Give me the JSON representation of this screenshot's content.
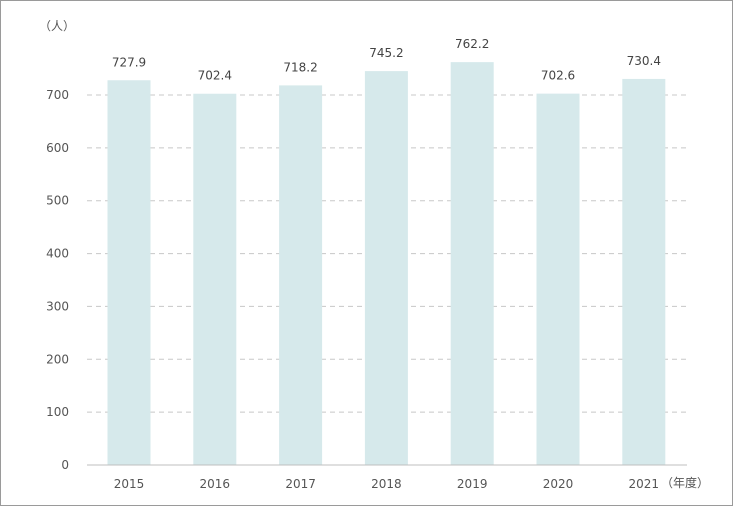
{
  "chart_data": {
    "type": "bar",
    "categories": [
      "2015",
      "2016",
      "2017",
      "2018",
      "2019",
      "2020",
      "2021"
    ],
    "values": [
      727.9,
      702.4,
      718.2,
      745.2,
      762.2,
      702.6,
      730.4
    ],
    "value_labels": [
      "727.9",
      "702.4",
      "718.2",
      "745.2",
      "762.2",
      "702.6",
      "730.4"
    ],
    "y_ticks": [
      0,
      100,
      200,
      300,
      400,
      500,
      600,
      700
    ],
    "ylim": [
      0,
      800
    ],
    "ylabel": "（人）",
    "xlabel": "（年度）",
    "grid": true,
    "colors": {
      "bar": "#d6e9eb",
      "grid": "#c8c8c8",
      "axis": "#bfbfbf"
    }
  }
}
